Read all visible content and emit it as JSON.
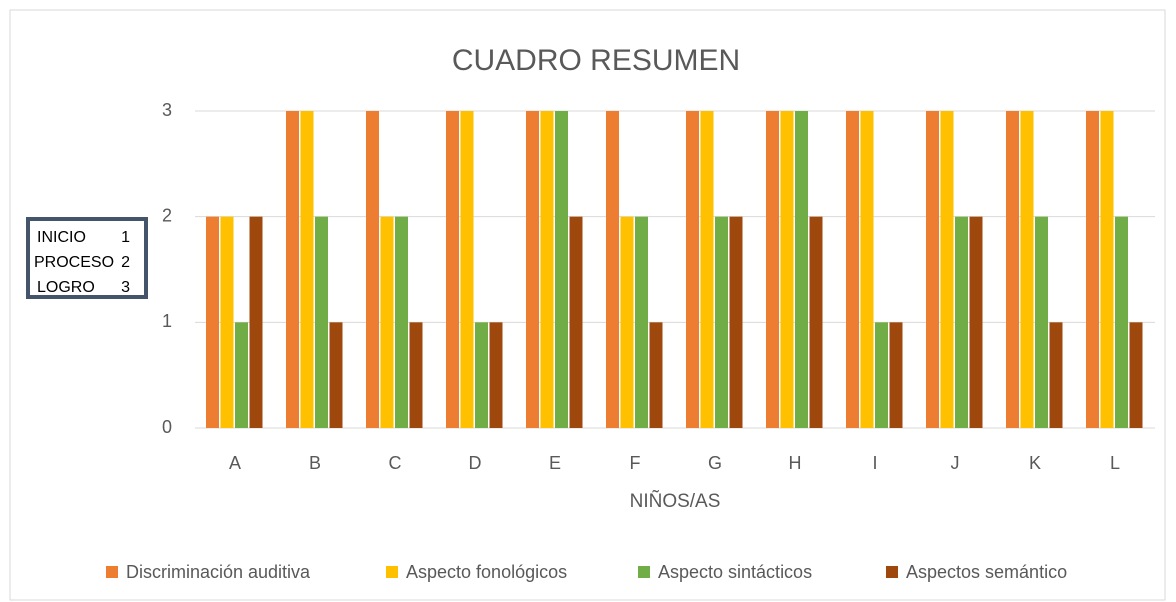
{
  "chart_data": {
    "type": "bar",
    "title": "CUADRO RESUMEN",
    "x_label": "NIÑOS/AS",
    "categories": [
      "A",
      "B",
      "C",
      "D",
      "E",
      "F",
      "G",
      "H",
      "I",
      "J",
      "K",
      "L"
    ],
    "series": [
      {
        "name": "Discriminación auditiva",
        "color": "#ED7D31",
        "values": [
          2,
          3,
          3,
          3,
          3,
          3,
          3,
          3,
          3,
          3,
          3,
          3
        ]
      },
      {
        "name": "Aspecto fonológicos",
        "color": "#FFC000",
        "values": [
          2,
          3,
          2,
          3,
          3,
          2,
          3,
          3,
          3,
          3,
          3,
          3
        ]
      },
      {
        "name": "Aspecto sintácticos",
        "color": "#70AD47",
        "values": [
          1,
          2,
          2,
          1,
          3,
          2,
          2,
          3,
          1,
          2,
          2,
          2
        ]
      },
      {
        "name": "Aspectos semántico",
        "color": "#9E480E",
        "values": [
          2,
          1,
          1,
          1,
          2,
          1,
          2,
          2,
          1,
          2,
          1,
          1
        ]
      }
    ],
    "ylim": [
      0,
      3
    ],
    "yticks": [
      0,
      1,
      2,
      3
    ],
    "grid": true,
    "legend": "bottom",
    "annotation": [
      {
        "label": "INICIO",
        "value": 1
      },
      {
        "label": "PROCESO",
        "value": 2
      },
      {
        "label": "LOGRO",
        "value": 3
      }
    ]
  }
}
